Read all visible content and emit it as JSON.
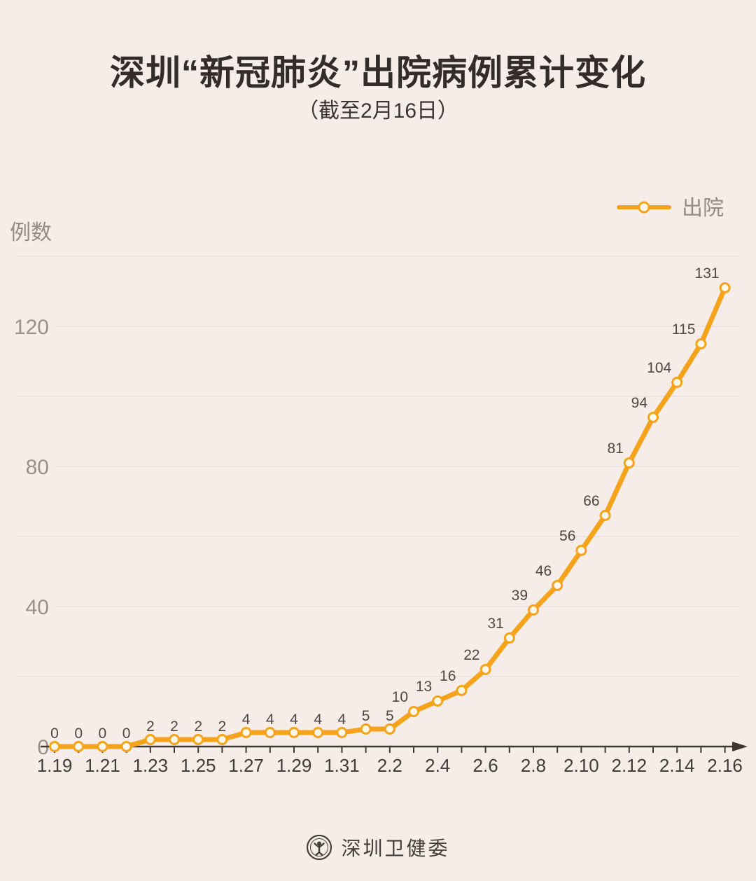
{
  "header": {
    "title": "深圳“新冠肺炎”出院病例累计变化",
    "subtitle": "（截至2月16日）"
  },
  "legend": {
    "label": "出院"
  },
  "y_axis": {
    "title": "例数",
    "tick_values": [
      0,
      40,
      80,
      120
    ]
  },
  "footer": {
    "org": "深圳卫健委",
    "logo": "health-commission-emblem"
  },
  "colors": {
    "background": "#f6ece8",
    "line": "#f6a31c",
    "marker_fill": "#fff8ea",
    "grid": "#eadfd9",
    "axis": "#3e3833",
    "x_label": "#433c37",
    "y_label": "#9b9089",
    "point_label": "#4f4740",
    "legend_text": "#958b84",
    "title_text": "#332d29"
  },
  "chart_data": {
    "type": "line",
    "title": "深圳“新冠肺炎”出院病例累计变化（截至2月16日）",
    "categories": [
      "1.19",
      "1.20",
      "1.21",
      "1.22",
      "1.23",
      "1.24",
      "1.25",
      "1.26",
      "1.27",
      "1.28",
      "1.29",
      "1.30",
      "1.31",
      "2.1",
      "2.2",
      "2.3",
      "2.4",
      "2.5",
      "2.6",
      "2.7",
      "2.8",
      "2.9",
      "2.10",
      "2.11",
      "2.12",
      "2.13",
      "2.14",
      "2.15",
      "2.16"
    ],
    "values": [
      0,
      0,
      0,
      0,
      2,
      2,
      2,
      2,
      4,
      4,
      4,
      4,
      4,
      5,
      5,
      10,
      13,
      16,
      22,
      31,
      39,
      46,
      56,
      66,
      81,
      94,
      104,
      115,
      131
    ],
    "series_name": "出院",
    "xlabel": "",
    "ylabel": "例数",
    "ylim": [
      0,
      140
    ],
    "grid": true,
    "grid_step": 20,
    "x_tick_every": 2,
    "legend_position": "top-right",
    "point_labels_shown": true
  }
}
